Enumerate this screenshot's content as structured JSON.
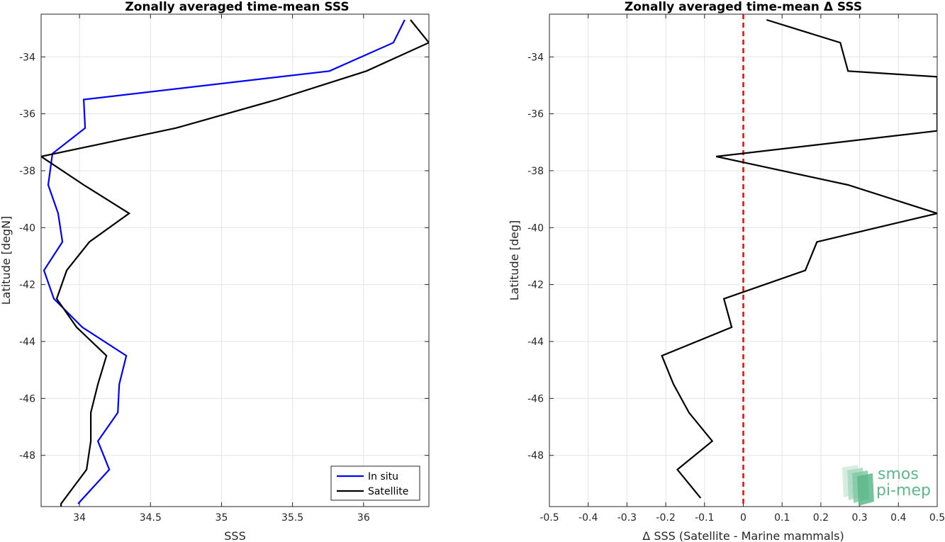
{
  "chart_data": [
    {
      "type": "line",
      "title": "Zonally averaged time-mean SSS",
      "xlabel": "SSS",
      "ylabel": "Latitude [degN]",
      "xlim": [
        33.73,
        36.46
      ],
      "ylim": [
        -49.8,
        -32.5
      ],
      "xticks": [
        "34",
        "34.5",
        "35",
        "35.5",
        "36"
      ],
      "yticks": [
        "-34",
        "-36",
        "-38",
        "-40",
        "-42",
        "-44",
        "-46",
        "-48"
      ],
      "grid": true,
      "legend": "bottom-right",
      "series": [
        {
          "name": "In situ",
          "color": "#0000ff",
          "points": [
            [
              36.29,
              -32.7
            ],
            [
              36.21,
              -33.5
            ],
            [
              35.76,
              -34.5
            ],
            [
              34.03,
              -35.5
            ],
            [
              34.04,
              -36.5
            ],
            [
              33.81,
              -37.4
            ],
            [
              33.78,
              -38.5
            ],
            [
              33.85,
              -39.5
            ],
            [
              33.88,
              -40.5
            ],
            [
              33.75,
              -41.5
            ],
            [
              33.82,
              -42.5
            ],
            [
              34.02,
              -43.5
            ],
            [
              34.33,
              -44.5
            ],
            [
              34.28,
              -45.5
            ],
            [
              34.27,
              -46.5
            ],
            [
              34.13,
              -47.5
            ],
            [
              34.21,
              -48.5
            ],
            [
              33.99,
              -49.7
            ]
          ]
        },
        {
          "name": "Satellite",
          "color": "#000000",
          "points": [
            [
              36.33,
              -32.7
            ],
            [
              36.46,
              -33.5
            ],
            [
              36.02,
              -34.5
            ],
            [
              35.39,
              -35.5
            ],
            [
              34.68,
              -36.5
            ],
            [
              33.73,
              -37.5
            ],
            [
              34.03,
              -38.5
            ],
            [
              34.35,
              -39.5
            ],
            [
              34.07,
              -40.5
            ],
            [
              33.91,
              -41.5
            ],
            [
              33.84,
              -42.5
            ],
            [
              33.98,
              -43.5
            ],
            [
              34.19,
              -44.5
            ],
            [
              34.13,
              -45.5
            ],
            [
              34.08,
              -46.5
            ],
            [
              34.08,
              -47.5
            ],
            [
              34.05,
              -48.5
            ],
            [
              33.87,
              -49.7
            ],
            [
              33.87,
              -49.8
            ]
          ]
        }
      ]
    },
    {
      "type": "line",
      "title": "Zonally averaged time-mean Δ SSS",
      "xlabel": "Δ SSS (Satellite - Marine mammals)",
      "ylabel": "Latitude [deg]",
      "xlim": [
        -0.5,
        0.5
      ],
      "ylim": [
        -49.8,
        -32.5
      ],
      "xticks": [
        "-0.5",
        "-0.4",
        "-0.3",
        "-0.2",
        "-0.1",
        "0",
        "0.1",
        "0.2",
        "0.3",
        "0.4",
        "0.5"
      ],
      "yticks": [
        "-34",
        "-36",
        "-38",
        "-40",
        "-42",
        "-44",
        "-46",
        "-48"
      ],
      "grid": true,
      "reference_line": {
        "x": 0,
        "color": "#ff0000",
        "style": "dashed"
      },
      "series": [
        {
          "color": "#000000",
          "points": [
            [
              0.06,
              -32.7
            ],
            [
              0.25,
              -33.5
            ],
            [
              0.27,
              -34.5
            ],
            [
              0.5,
              -34.7
            ],
            [
              0.5,
              -36.6
            ],
            [
              -0.07,
              -37.5
            ],
            [
              0.27,
              -38.5
            ],
            [
              0.5,
              -39.5
            ],
            [
              0.19,
              -40.5
            ],
            [
              0.16,
              -41.5
            ],
            [
              -0.05,
              -42.5
            ],
            [
              -0.03,
              -43.5
            ],
            [
              -0.21,
              -44.5
            ],
            [
              -0.18,
              -45.5
            ],
            [
              -0.14,
              -46.5
            ],
            [
              -0.08,
              -47.5
            ],
            [
              -0.17,
              -48.5
            ],
            [
              -0.11,
              -49.5
            ]
          ]
        }
      ]
    }
  ],
  "logo": {
    "line1": "smos",
    "line2": "pi-mep"
  }
}
